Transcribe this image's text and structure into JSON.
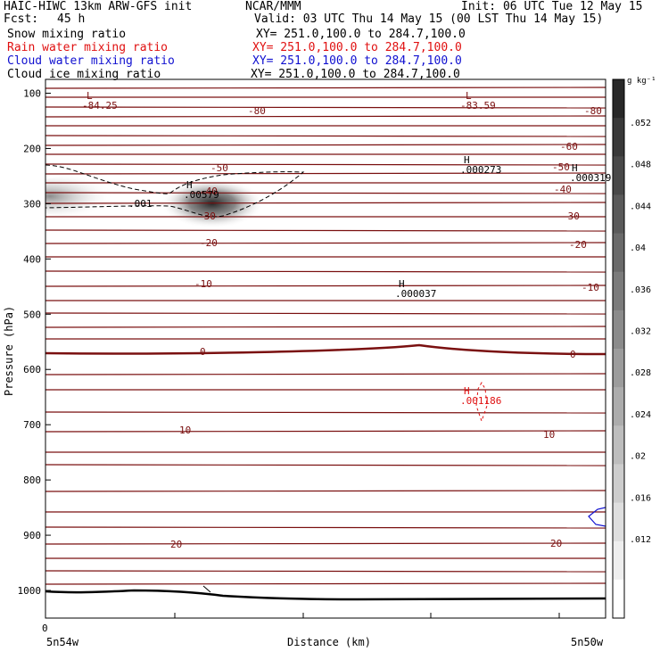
{
  "header": {
    "model_line": "HAIC-HIWC 13km ARW-GFS init",
    "org": "NCAR/MMM",
    "init": "Init: 06 UTC Tue 12 May 15",
    "fcst_label": "Fcst:",
    "fcst_value": "45 h",
    "valid": "Valid: 03 UTC Thu 14 May 15 (00 LST Thu 14 May 15)"
  },
  "legend": [
    {
      "label": "Snow mixing ratio",
      "xy": "XY= 251.0,100.0 to 284.7,100.0",
      "color": "#000000"
    },
    {
      "label": "Rain water mixing ratio",
      "xy": "XY= 251.0,100.0 to 284.7,100.0",
      "color": "#e01010"
    },
    {
      "label": "Cloud water mixing ratio",
      "xy": "XY= 251.0,100.0 to 284.7,100.0",
      "color": "#1010d0"
    },
    {
      "label": "Cloud ice mixing ratio",
      "xy": "XY= 251.0,100.0 to 284.7,100.0",
      "color": "#000000"
    }
  ],
  "chart_data": {
    "type": "heatmap",
    "ylabel": "Pressure (hPa)",
    "xlabel": "Distance (km)",
    "y_ticks": [
      100,
      200,
      300,
      400,
      500,
      600,
      700,
      800,
      900,
      1000
    ],
    "ylim": [
      1050,
      75
    ],
    "x_tick_label": "0",
    "x_left_label": "5n54w",
    "x_right_label": "5n50w",
    "colorbar": {
      "units": "g kg⁻¹",
      "ticks": [
        ".052",
        ".048",
        ".044",
        ".04",
        ".036",
        ".032",
        ".028",
        ".024",
        ".02",
        ".016",
        ".012"
      ]
    },
    "temperature_labels": [
      "-84.25",
      "-83.59",
      "-80",
      "-60",
      "-50",
      "-40",
      "-30",
      "-20",
      "-10",
      "0",
      "10",
      "20"
    ],
    "extrema": [
      {
        "kind": "L",
        "value": "-84.25",
        "color": "#7a1010"
      },
      {
        "kind": "L",
        "value": "-83.59",
        "color": "#7a1010"
      },
      {
        "kind": "H",
        "value": ".00579",
        "color": "#000000"
      },
      {
        "kind": "H",
        "value": ".000273",
        "color": "#000000"
      },
      {
        "kind": "H",
        "value": ".000319",
        "color": "#000000"
      },
      {
        "kind": "H",
        "value": ".000037",
        "color": "#000000"
      },
      {
        "kind": "H",
        "value": ".001186",
        "color": "#e01010"
      }
    ],
    "snow_contour_label": ".001",
    "colors": {
      "isotherm": "#7a1010",
      "rain": "#e01010",
      "cloud_water": "#1010d0",
      "terrain": "#000000"
    }
  }
}
